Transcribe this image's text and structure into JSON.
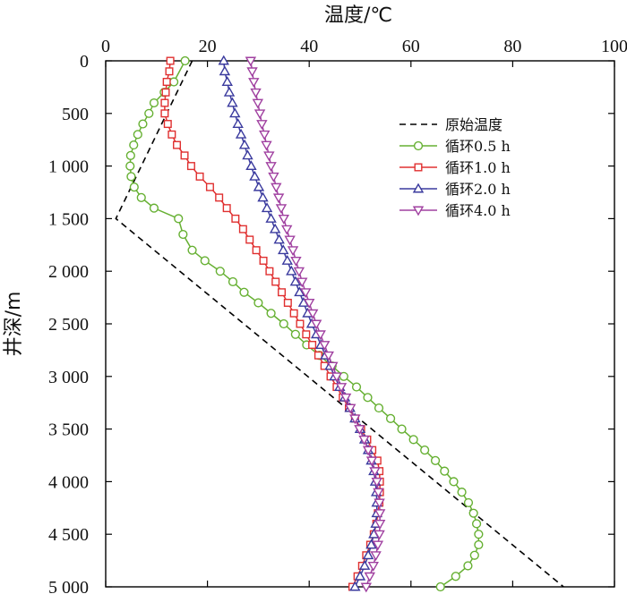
{
  "chart_data": {
    "type": "line",
    "title": "",
    "xlabel": "温度/℃",
    "ylabel": "井深/m",
    "xlim": [
      0,
      100
    ],
    "ylim": [
      0,
      5000
    ],
    "y_inverted": true,
    "x_axis_position": "top",
    "x_ticks": [
      0,
      20,
      40,
      60,
      80,
      100
    ],
    "x_tick_labels": [
      "0",
      "20",
      "40",
      "60",
      "80",
      "100"
    ],
    "y_ticks": [
      0,
      500,
      1000,
      1500,
      2000,
      2500,
      3000,
      3500,
      4000,
      4500,
      5000
    ],
    "y_tick_labels": [
      "0",
      "500",
      "1 000",
      "1 500",
      "2 000",
      "2 500",
      "3 000",
      "3 500",
      "4 000",
      "4 500",
      "5 000"
    ],
    "legend_position": "top-right",
    "series": [
      {
        "name": "原始温度",
        "style": "dashed",
        "color": "#000000",
        "marker": "none",
        "points": [
          [
            17,
            0
          ],
          [
            2,
            1500
          ],
          [
            90,
            5000
          ]
        ]
      },
      {
        "name": "循环0.5 h",
        "style": "solid",
        "color": "#66b032",
        "marker": "circle",
        "points": [
          [
            15.6,
            0
          ],
          [
            13.4,
            200
          ],
          [
            11.5,
            300
          ],
          [
            9.5,
            400
          ],
          [
            8.5,
            500
          ],
          [
            7.3,
            600
          ],
          [
            6.3,
            700
          ],
          [
            5.5,
            800
          ],
          [
            4.9,
            900
          ],
          [
            4.8,
            1000
          ],
          [
            5.0,
            1100
          ],
          [
            5.6,
            1200
          ],
          [
            7.0,
            1300
          ],
          [
            9.5,
            1400
          ],
          [
            14.3,
            1500
          ],
          [
            15.2,
            1650
          ],
          [
            17.0,
            1800
          ],
          [
            19.5,
            1900
          ],
          [
            22.5,
            2000
          ],
          [
            25.0,
            2100
          ],
          [
            27.2,
            2200
          ],
          [
            30.0,
            2300
          ],
          [
            32.5,
            2400
          ],
          [
            35.0,
            2500
          ],
          [
            37.3,
            2600
          ],
          [
            39.5,
            2700
          ],
          [
            42.0,
            2800
          ],
          [
            44.5,
            2900
          ],
          [
            46.8,
            3000
          ],
          [
            49.3,
            3100
          ],
          [
            51.5,
            3200
          ],
          [
            53.7,
            3300
          ],
          [
            56.0,
            3400
          ],
          [
            58.2,
            3500
          ],
          [
            60.5,
            3600
          ],
          [
            62.7,
            3700
          ],
          [
            64.8,
            3800
          ],
          [
            66.6,
            3900
          ],
          [
            68.4,
            4000
          ],
          [
            70.0,
            4100
          ],
          [
            71.3,
            4200
          ],
          [
            72.3,
            4300
          ],
          [
            72.9,
            4400
          ],
          [
            73.3,
            4500
          ],
          [
            73.3,
            4600
          ],
          [
            72.5,
            4700
          ],
          [
            71.2,
            4800
          ],
          [
            68.8,
            4900
          ],
          [
            65.8,
            5000
          ]
        ]
      },
      {
        "name": "循环1.0 h",
        "style": "solid",
        "color": "#e03030",
        "marker": "square",
        "points": [
          [
            12.7,
            0
          ],
          [
            12.5,
            100
          ],
          [
            12.0,
            200
          ],
          [
            11.8,
            300
          ],
          [
            11.6,
            400
          ],
          [
            11.6,
            500
          ],
          [
            12.2,
            600
          ],
          [
            13.0,
            700
          ],
          [
            14.0,
            800
          ],
          [
            15.5,
            900
          ],
          [
            16.8,
            1000
          ],
          [
            18.5,
            1100
          ],
          [
            20.5,
            1200
          ],
          [
            22.3,
            1300
          ],
          [
            23.8,
            1400
          ],
          [
            25.5,
            1500
          ],
          [
            27.0,
            1600
          ],
          [
            28.3,
            1700
          ],
          [
            29.6,
            1800
          ],
          [
            31.0,
            1900
          ],
          [
            32.2,
            2000
          ],
          [
            33.4,
            2100
          ],
          [
            34.6,
            2200
          ],
          [
            35.8,
            2300
          ],
          [
            37.0,
            2400
          ],
          [
            38.2,
            2500
          ],
          [
            39.4,
            2600
          ],
          [
            40.6,
            2700
          ],
          [
            41.8,
            2800
          ],
          [
            43.0,
            2900
          ],
          [
            44.2,
            3000
          ],
          [
            45.4,
            3100
          ],
          [
            46.6,
            3200
          ],
          [
            47.8,
            3300
          ],
          [
            49.0,
            3400
          ],
          [
            50.2,
            3500
          ],
          [
            51.4,
            3600
          ],
          [
            52.4,
            3700
          ],
          [
            53.4,
            3800
          ],
          [
            53.8,
            3900
          ],
          [
            53.9,
            4000
          ],
          [
            53.9,
            4100
          ],
          [
            53.8,
            4200
          ],
          [
            53.5,
            4300
          ],
          [
            53.2,
            4400
          ],
          [
            52.7,
            4500
          ],
          [
            52.0,
            4600
          ],
          [
            51.2,
            4700
          ],
          [
            50.4,
            4800
          ],
          [
            49.5,
            4900
          ],
          [
            48.5,
            5000
          ]
        ]
      },
      {
        "name": "循环2.0 h",
        "style": "solid",
        "color": "#3a3a9e",
        "marker": "triangle-up",
        "points": [
          [
            23.2,
            0
          ],
          [
            23.4,
            100
          ],
          [
            23.9,
            200
          ],
          [
            24.3,
            300
          ],
          [
            24.9,
            400
          ],
          [
            25.4,
            500
          ],
          [
            26.0,
            600
          ],
          [
            26.6,
            700
          ],
          [
            27.3,
            800
          ],
          [
            27.9,
            900
          ],
          [
            28.6,
            1000
          ],
          [
            29.3,
            1100
          ],
          [
            30.1,
            1200
          ],
          [
            30.9,
            1300
          ],
          [
            31.7,
            1400
          ],
          [
            32.5,
            1500
          ],
          [
            33.3,
            1600
          ],
          [
            34.1,
            1700
          ],
          [
            34.9,
            1800
          ],
          [
            35.7,
            1900
          ],
          [
            36.5,
            2000
          ],
          [
            37.3,
            2100
          ],
          [
            38.1,
            2200
          ],
          [
            38.9,
            2300
          ],
          [
            39.7,
            2400
          ],
          [
            40.5,
            2500
          ],
          [
            41.4,
            2600
          ],
          [
            42.3,
            2700
          ],
          [
            43.2,
            2800
          ],
          [
            44.1,
            2900
          ],
          [
            45.0,
            3000
          ],
          [
            46.0,
            3100
          ],
          [
            47.0,
            3200
          ],
          [
            48.0,
            3300
          ],
          [
            49.0,
            3400
          ],
          [
            50.0,
            3500
          ],
          [
            50.9,
            3600
          ],
          [
            51.6,
            3700
          ],
          [
            52.2,
            3800
          ],
          [
            52.7,
            3900
          ],
          [
            53.0,
            4000
          ],
          [
            53.2,
            4100
          ],
          [
            53.3,
            4200
          ],
          [
            53.3,
            4300
          ],
          [
            53.1,
            4400
          ],
          [
            52.7,
            4500
          ],
          [
            52.2,
            4600
          ],
          [
            51.6,
            4700
          ],
          [
            50.9,
            4800
          ],
          [
            50.0,
            4900
          ],
          [
            49.0,
            5000
          ]
        ]
      },
      {
        "name": "循环4.0 h",
        "style": "solid",
        "color": "#a040a0",
        "marker": "triangle-down",
        "points": [
          [
            28.5,
            0
          ],
          [
            28.8,
            100
          ],
          [
            29.1,
            200
          ],
          [
            29.5,
            300
          ],
          [
            29.9,
            400
          ],
          [
            30.3,
            500
          ],
          [
            30.7,
            600
          ],
          [
            31.2,
            700
          ],
          [
            31.6,
            800
          ],
          [
            32.1,
            900
          ],
          [
            32.5,
            1000
          ],
          [
            33.0,
            1100
          ],
          [
            33.5,
            1200
          ],
          [
            34.0,
            1300
          ],
          [
            34.5,
            1400
          ],
          [
            35.0,
            1500
          ],
          [
            35.6,
            1600
          ],
          [
            36.2,
            1700
          ],
          [
            36.8,
            1800
          ],
          [
            37.4,
            1900
          ],
          [
            38.0,
            2000
          ],
          [
            38.6,
            2100
          ],
          [
            39.3,
            2200
          ],
          [
            40.0,
            2300
          ],
          [
            40.7,
            2400
          ],
          [
            41.4,
            2500
          ],
          [
            42.2,
            2600
          ],
          [
            43.0,
            2700
          ],
          [
            43.8,
            2800
          ],
          [
            44.6,
            2900
          ],
          [
            45.4,
            3000
          ],
          [
            46.3,
            3100
          ],
          [
            47.2,
            3200
          ],
          [
            48.1,
            3300
          ],
          [
            49.0,
            3400
          ],
          [
            49.9,
            3500
          ],
          [
            50.8,
            3600
          ],
          [
            51.6,
            3700
          ],
          [
            52.3,
            3800
          ],
          [
            52.9,
            3900
          ],
          [
            53.3,
            4000
          ],
          [
            53.6,
            4100
          ],
          [
            53.8,
            4200
          ],
          [
            53.9,
            4300
          ],
          [
            53.9,
            4400
          ],
          [
            53.8,
            4500
          ],
          [
            53.5,
            4600
          ],
          [
            53.1,
            4700
          ],
          [
            52.6,
            4800
          ],
          [
            51.9,
            4900
          ],
          [
            51.2,
            5000
          ]
        ]
      }
    ]
  }
}
